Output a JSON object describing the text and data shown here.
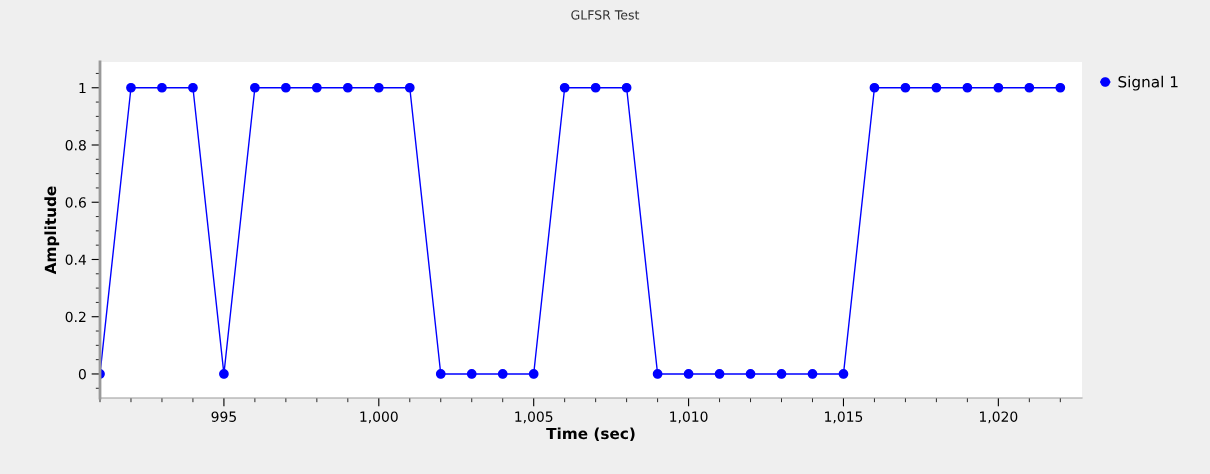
{
  "chart_data": {
    "type": "line",
    "title": "GLFSR Test",
    "xlabel": "Time (sec)",
    "ylabel": "Amplitude",
    "x": [
      991,
      992,
      993,
      994,
      995,
      996,
      997,
      998,
      999,
      1000,
      1001,
      1002,
      1003,
      1004,
      1005,
      1006,
      1007,
      1008,
      1009,
      1010,
      1011,
      1012,
      1013,
      1014,
      1015,
      1016,
      1017,
      1018,
      1019,
      1020,
      1021,
      1022
    ],
    "series": [
      {
        "name": "Signal 1",
        "color": "#0000ff",
        "values": [
          0,
          1,
          1,
          1,
          0,
          1,
          1,
          1,
          1,
          1,
          1,
          0,
          0,
          0,
          0,
          1,
          1,
          1,
          0,
          0,
          0,
          0,
          0,
          0,
          0,
          1,
          1,
          1,
          1,
          1,
          1,
          1
        ]
      }
    ],
    "xlim": [
      991,
      1022.7
    ],
    "xticks": [
      995,
      {
        "value": 1000,
        "label": "1,000"
      },
      {
        "value": 1005,
        "label": "1,005"
      },
      {
        "value": 1010,
        "label": "1,010"
      },
      {
        "value": 1015,
        "label": "1,015"
      },
      {
        "value": 1020,
        "label": "1,020"
      }
    ],
    "ylim": [
      -0.084,
      1.09
    ],
    "yticks": [
      0,
      0.2,
      0.4,
      0.6,
      0.8,
      1
    ],
    "grid": false,
    "legend": "top right",
    "marker": "circle",
    "line_style": "solid"
  }
}
